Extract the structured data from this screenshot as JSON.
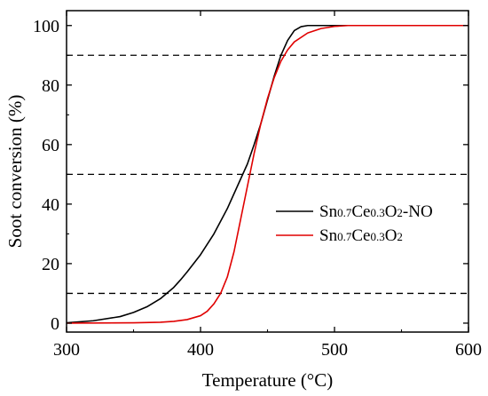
{
  "chart_data": {
    "type": "line",
    "xlabel": "Temperature (°C)",
    "ylabel": "Soot conversion (%)",
    "xlim": [
      300,
      600
    ],
    "ylim": [
      -3,
      105
    ],
    "xticks": [
      "300",
      "400",
      "500",
      "600"
    ],
    "yticks": [
      "0",
      "20",
      "40",
      "60",
      "80",
      "100"
    ],
    "grid": false,
    "legend_position": "center-right",
    "reference_lines": [
      {
        "axis": "y",
        "value": 10,
        "style": "dashed"
      },
      {
        "axis": "y",
        "value": 50,
        "style": "dashed"
      },
      {
        "axis": "y",
        "value": 90,
        "style": "dashed"
      }
    ],
    "series": [
      {
        "name_parts": [
          {
            "t": "Sn",
            "sub": false
          },
          {
            "t": "0.7",
            "sub": true
          },
          {
            "t": "Ce",
            "sub": false
          },
          {
            "t": "0.3",
            "sub": true
          },
          {
            "t": "O",
            "sub": false
          },
          {
            "t": "2",
            "sub": true
          },
          {
            "t": "-NO",
            "sub": false
          }
        ],
        "color": "#000000",
        "x": [
          300,
          320,
          340,
          350,
          360,
          370,
          380,
          385,
          390,
          400,
          410,
          420,
          430,
          435,
          440,
          445,
          450,
          455,
          460,
          465,
          470,
          475,
          480,
          490,
          500,
          520,
          600
        ],
        "y": [
          0.1,
          0.8,
          2.2,
          3.6,
          5.5,
          8.2,
          12.0,
          14.5,
          17.2,
          23.0,
          30.0,
          38.5,
          48.5,
          53.5,
          60.0,
          67.0,
          75.0,
          83.0,
          90.0,
          95.0,
          98.3,
          99.6,
          100,
          100,
          100,
          100,
          100
        ]
      },
      {
        "name_parts": [
          {
            "t": "Sn",
            "sub": false
          },
          {
            "t": "0.7",
            "sub": true
          },
          {
            "t": "Ce",
            "sub": false
          },
          {
            "t": "0.3",
            "sub": true
          },
          {
            "t": "O",
            "sub": false
          },
          {
            "t": "2",
            "sub": true
          }
        ],
        "color": "#e00000",
        "x": [
          300,
          350,
          370,
          380,
          390,
          400,
          405,
          410,
          415,
          420,
          425,
          430,
          435,
          440,
          445,
          450,
          455,
          460,
          465,
          470,
          480,
          490,
          500,
          510,
          520,
          600
        ],
        "y": [
          0,
          0.1,
          0.3,
          0.6,
          1.2,
          2.5,
          4.0,
          6.5,
          10.0,
          15.5,
          24.0,
          35.0,
          46.0,
          57.0,
          67.0,
          75.5,
          82.5,
          88.0,
          91.8,
          94.5,
          97.5,
          99.0,
          99.7,
          100,
          100,
          100
        ]
      }
    ]
  }
}
